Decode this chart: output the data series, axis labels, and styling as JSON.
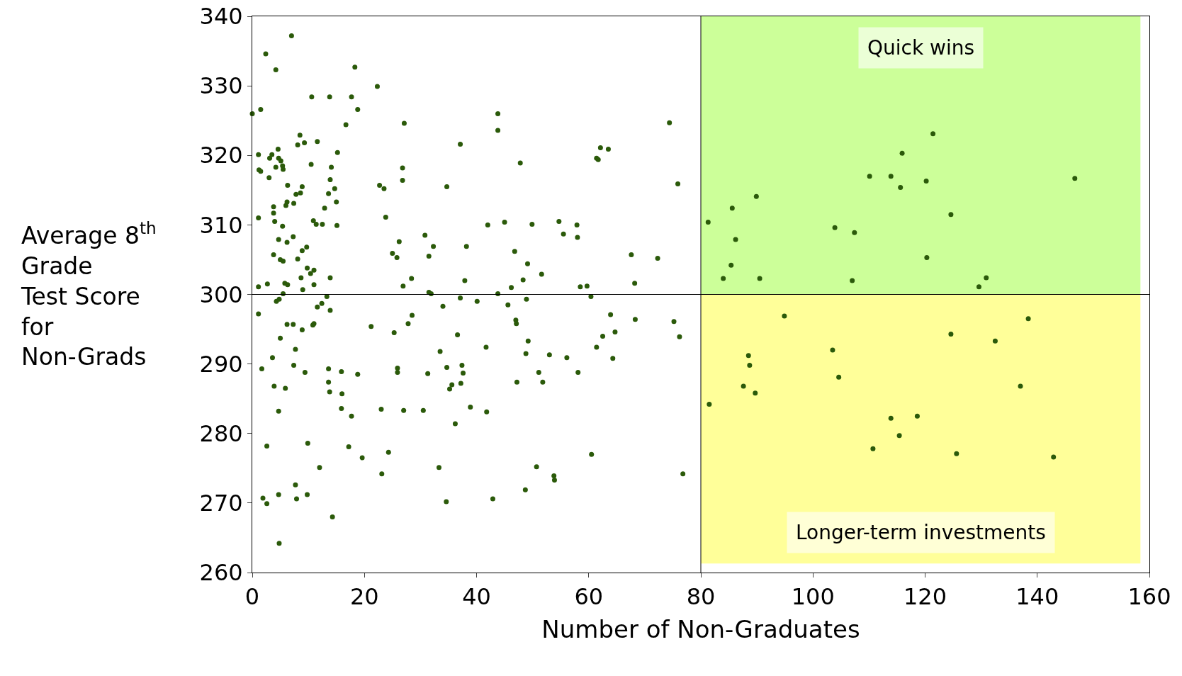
{
  "chart_data": {
    "type": "scatter",
    "xlabel": "Number of Non-Graduates",
    "ylabel": "Average 8$^{th}$\nGrade\nTest Score\nfor\nNon-Grads",
    "xlim": [
      0,
      160
    ],
    "xticks": [
      0,
      20,
      40,
      60,
      80,
      100,
      120,
      140,
      160
    ],
    "ylim": [
      260,
      340
    ],
    "yticks": [
      260,
      270,
      280,
      290,
      300,
      310,
      320,
      330,
      340
    ],
    "grid": false,
    "marker": "circle",
    "bands": [
      {
        "axis": "y",
        "from": 300,
        "to": 340,
        "label": "Quick wins",
        "color": "#ccff99"
      },
      {
        "axis": "y",
        "from": 261.3,
        "to": 300,
        "label": "Longer-term investments",
        "color": "#ffff99"
      }
    ],
    "ref_lines": [
      {
        "axis": "x",
        "value": 80,
        "label": null
      },
      {
        "axis": "y",
        "value": 300,
        "label": null
      }
    ],
    "series": [
      {
        "color": "#2b5a0a",
        "x": [
          0,
          1.5,
          2.4,
          4.2,
          7.0,
          1.1,
          1.2,
          1.5,
          1.1,
          1.1,
          1.1,
          1.7,
          1.9,
          2.6,
          2.6,
          2.7,
          3.0,
          3.1,
          3.5,
          3.8,
          3.8,
          4.0,
          3.8,
          3.6,
          3.9,
          4.2,
          4.6,
          4.7,
          4.7,
          5.0,
          4.3,
          4.8,
          5.0,
          4.7,
          4.7,
          4.8,
          5.1,
          5.4,
          5.5,
          5.4,
          5.5,
          5.5,
          5.8,
          5.9,
          6.2,
          6.0,
          6.2,
          6.3,
          6.2,
          6.3,
          7.3,
          7.4,
          7.7,
          7.7,
          7.9,
          7.3,
          7.4,
          7.8,
          8.1,
          8.5,
          8.1,
          8.6,
          8.9,
          9.3,
          8.9,
          9.7,
          8.7,
          9.0,
          8.9,
          9.4,
          9.8,
          9.9,
          9.8,
          10.4,
          10.5,
          10.6,
          10.9,
          10.8,
          11.0,
          11.0,
          11.0,
          11.4,
          11.6,
          11.6,
          12.0,
          12.4,
          12.5,
          12.9,
          13.6,
          13.3,
          13.6,
          13.6,
          13.8,
          13.9,
          14.1,
          13.9,
          13.9,
          13.8,
          14.3,
          14.7,
          15.0,
          15.1,
          15.2,
          15.9,
          16.0,
          15.9,
          16.7,
          17.7,
          17.2,
          17.7,
          18.3,
          18.8,
          18.8,
          19.6,
          21.2,
          22.3,
          22.7,
          23.0,
          23.1,
          23.5,
          23.8,
          24.3,
          25.0,
          25.3,
          25.8,
          25.9,
          25.9,
          26.2,
          26.8,
          26.8,
          27.1,
          26.9,
          27.0,
          27.8,
          28.4,
          28.5,
          30.5,
          30.8,
          31.5,
          31.5,
          31.9,
          31.3,
          32.3,
          33.5,
          33.3,
          34.0,
          34.6,
          34.7,
          34.7,
          35.2,
          35.6,
          36.2,
          36.6,
          37.1,
          37.1,
          37.4,
          37.2,
          37.6,
          37.9,
          38.2,
          38.9,
          40.1,
          41.7,
          41.8,
          42.0,
          42.9,
          43.8,
          43.8,
          43.8,
          45.0,
          45.6,
          46.2,
          46.8,
          47.0,
          47.1,
          47.2,
          47.8,
          48.3,
          48.7,
          48.9,
          49.2,
          49.1,
          48.8,
          49.9,
          50.7,
          51.1,
          51.8,
          51.6,
          53.0,
          53.8,
          53.9,
          54.7,
          55.5,
          56.1,
          57.9,
          58.0,
          58.1,
          58.5,
          59.7,
          60.4,
          60.5,
          61.4,
          61.4,
          61.7,
          62.1,
          62.5,
          63.5,
          63.9,
          64.3,
          64.7,
          67.6,
          68.2,
          68.3,
          72.3,
          74.4,
          75.2,
          75.9,
          76.2,
          76.8,
          81.3,
          81.5,
          84.0,
          85.4,
          85.6,
          86.2,
          87.6,
          88.5,
          88.7,
          89.7,
          89.9,
          90.5,
          94.9,
          103.5,
          103.9,
          104.6,
          107.0,
          107.4,
          110.1,
          110.7,
          113.9,
          113.9,
          115.4,
          115.6,
          115.9,
          118.6,
          120.2,
          120.3,
          121.4,
          124.6,
          124.6,
          125.6,
          129.6,
          130.9,
          132.5,
          137.0,
          138.4,
          142.9,
          146.7
        ],
        "values": [
          326.0,
          326.6,
          334.6,
          332.3,
          337.2,
          320.1,
          317.9,
          317.7,
          311.0,
          301.1,
          297.2,
          289.3,
          270.7,
          269.9,
          278.2,
          301.5,
          316.8,
          319.6,
          320.1,
          312.6,
          311.7,
          310.5,
          305.7,
          290.9,
          286.8,
          318.3,
          320.9,
          319.6,
          307.9,
          305.0,
          299.0,
          299.3,
          293.7,
          283.2,
          271.2,
          264.2,
          319.2,
          318.5,
          318.0,
          309.8,
          304.8,
          300.1,
          301.6,
          286.5,
          295.7,
          312.8,
          313.3,
          315.7,
          307.5,
          301.4,
          295.7,
          289.8,
          292.1,
          272.6,
          270.6,
          308.3,
          313.1,
          314.4,
          321.5,
          322.9,
          305.1,
          314.6,
          315.5,
          321.8,
          306.3,
          306.8,
          302.4,
          300.7,
          294.9,
          288.8,
          271.2,
          278.6,
          303.8,
          303.0,
          318.7,
          328.4,
          310.6,
          295.6,
          295.8,
          301.4,
          303.5,
          310.1,
          322.0,
          298.2,
          275.1,
          298.7,
          310.1,
          312.4,
          314.5,
          299.7,
          289.3,
          287.4,
          328.4,
          316.5,
          318.3,
          302.4,
          297.7,
          286.0,
          268.0,
          315.2,
          313.3,
          309.9,
          320.4,
          288.9,
          285.7,
          283.6,
          324.4,
          282.5,
          278.1,
          328.4,
          332.7,
          326.6,
          288.5,
          276.5,
          295.4,
          329.9,
          315.7,
          283.5,
          274.2,
          315.2,
          311.1,
          277.3,
          305.9,
          294.5,
          305.3,
          289.4,
          288.8,
          307.6,
          318.2,
          316.4,
          324.6,
          301.2,
          283.3,
          295.8,
          302.3,
          297.0,
          283.3,
          308.5,
          305.5,
          300.3,
          300.1,
          288.6,
          306.9,
          291.8,
          275.1,
          298.3,
          270.2,
          315.5,
          289.5,
          286.4,
          287.0,
          281.4,
          294.2,
          321.6,
          299.5,
          289.8,
          287.2,
          288.7,
          302.0,
          306.9,
          283.8,
          299.0,
          292.4,
          283.1,
          310.0,
          270.6,
          326.0,
          323.6,
          300.1,
          310.4,
          298.5,
          301.0,
          306.2,
          296.3,
          295.8,
          287.4,
          318.9,
          302.1,
          271.9,
          299.3,
          293.3,
          304.4,
          291.5,
          310.1,
          275.2,
          288.8,
          287.4,
          302.9,
          291.3,
          273.9,
          273.3,
          310.5,
          308.7,
          290.9,
          310.0,
          308.2,
          288.8,
          301.1,
          301.2,
          299.7,
          277.0,
          292.4,
          319.6,
          319.4,
          321.1,
          294.0,
          320.9,
          297.1,
          290.8,
          294.6,
          305.7,
          301.6,
          296.4,
          305.2,
          324.7,
          296.1,
          315.9,
          293.9,
          274.2,
          310.4,
          284.2,
          302.3,
          304.2,
          312.4,
          307.9,
          286.8,
          291.2,
          289.8,
          285.8,
          314.1,
          302.3,
          296.9,
          292.0,
          309.6,
          288.1,
          302.0,
          308.9,
          317.0,
          277.8,
          317.0,
          282.2,
          279.7,
          315.4,
          320.3,
          282.5,
          316.3,
          305.3,
          323.1,
          311.5,
          294.3,
          277.1,
          301.1,
          302.4,
          293.3,
          286.8,
          296.5,
          276.6,
          316.7
        ]
      }
    ]
  }
}
